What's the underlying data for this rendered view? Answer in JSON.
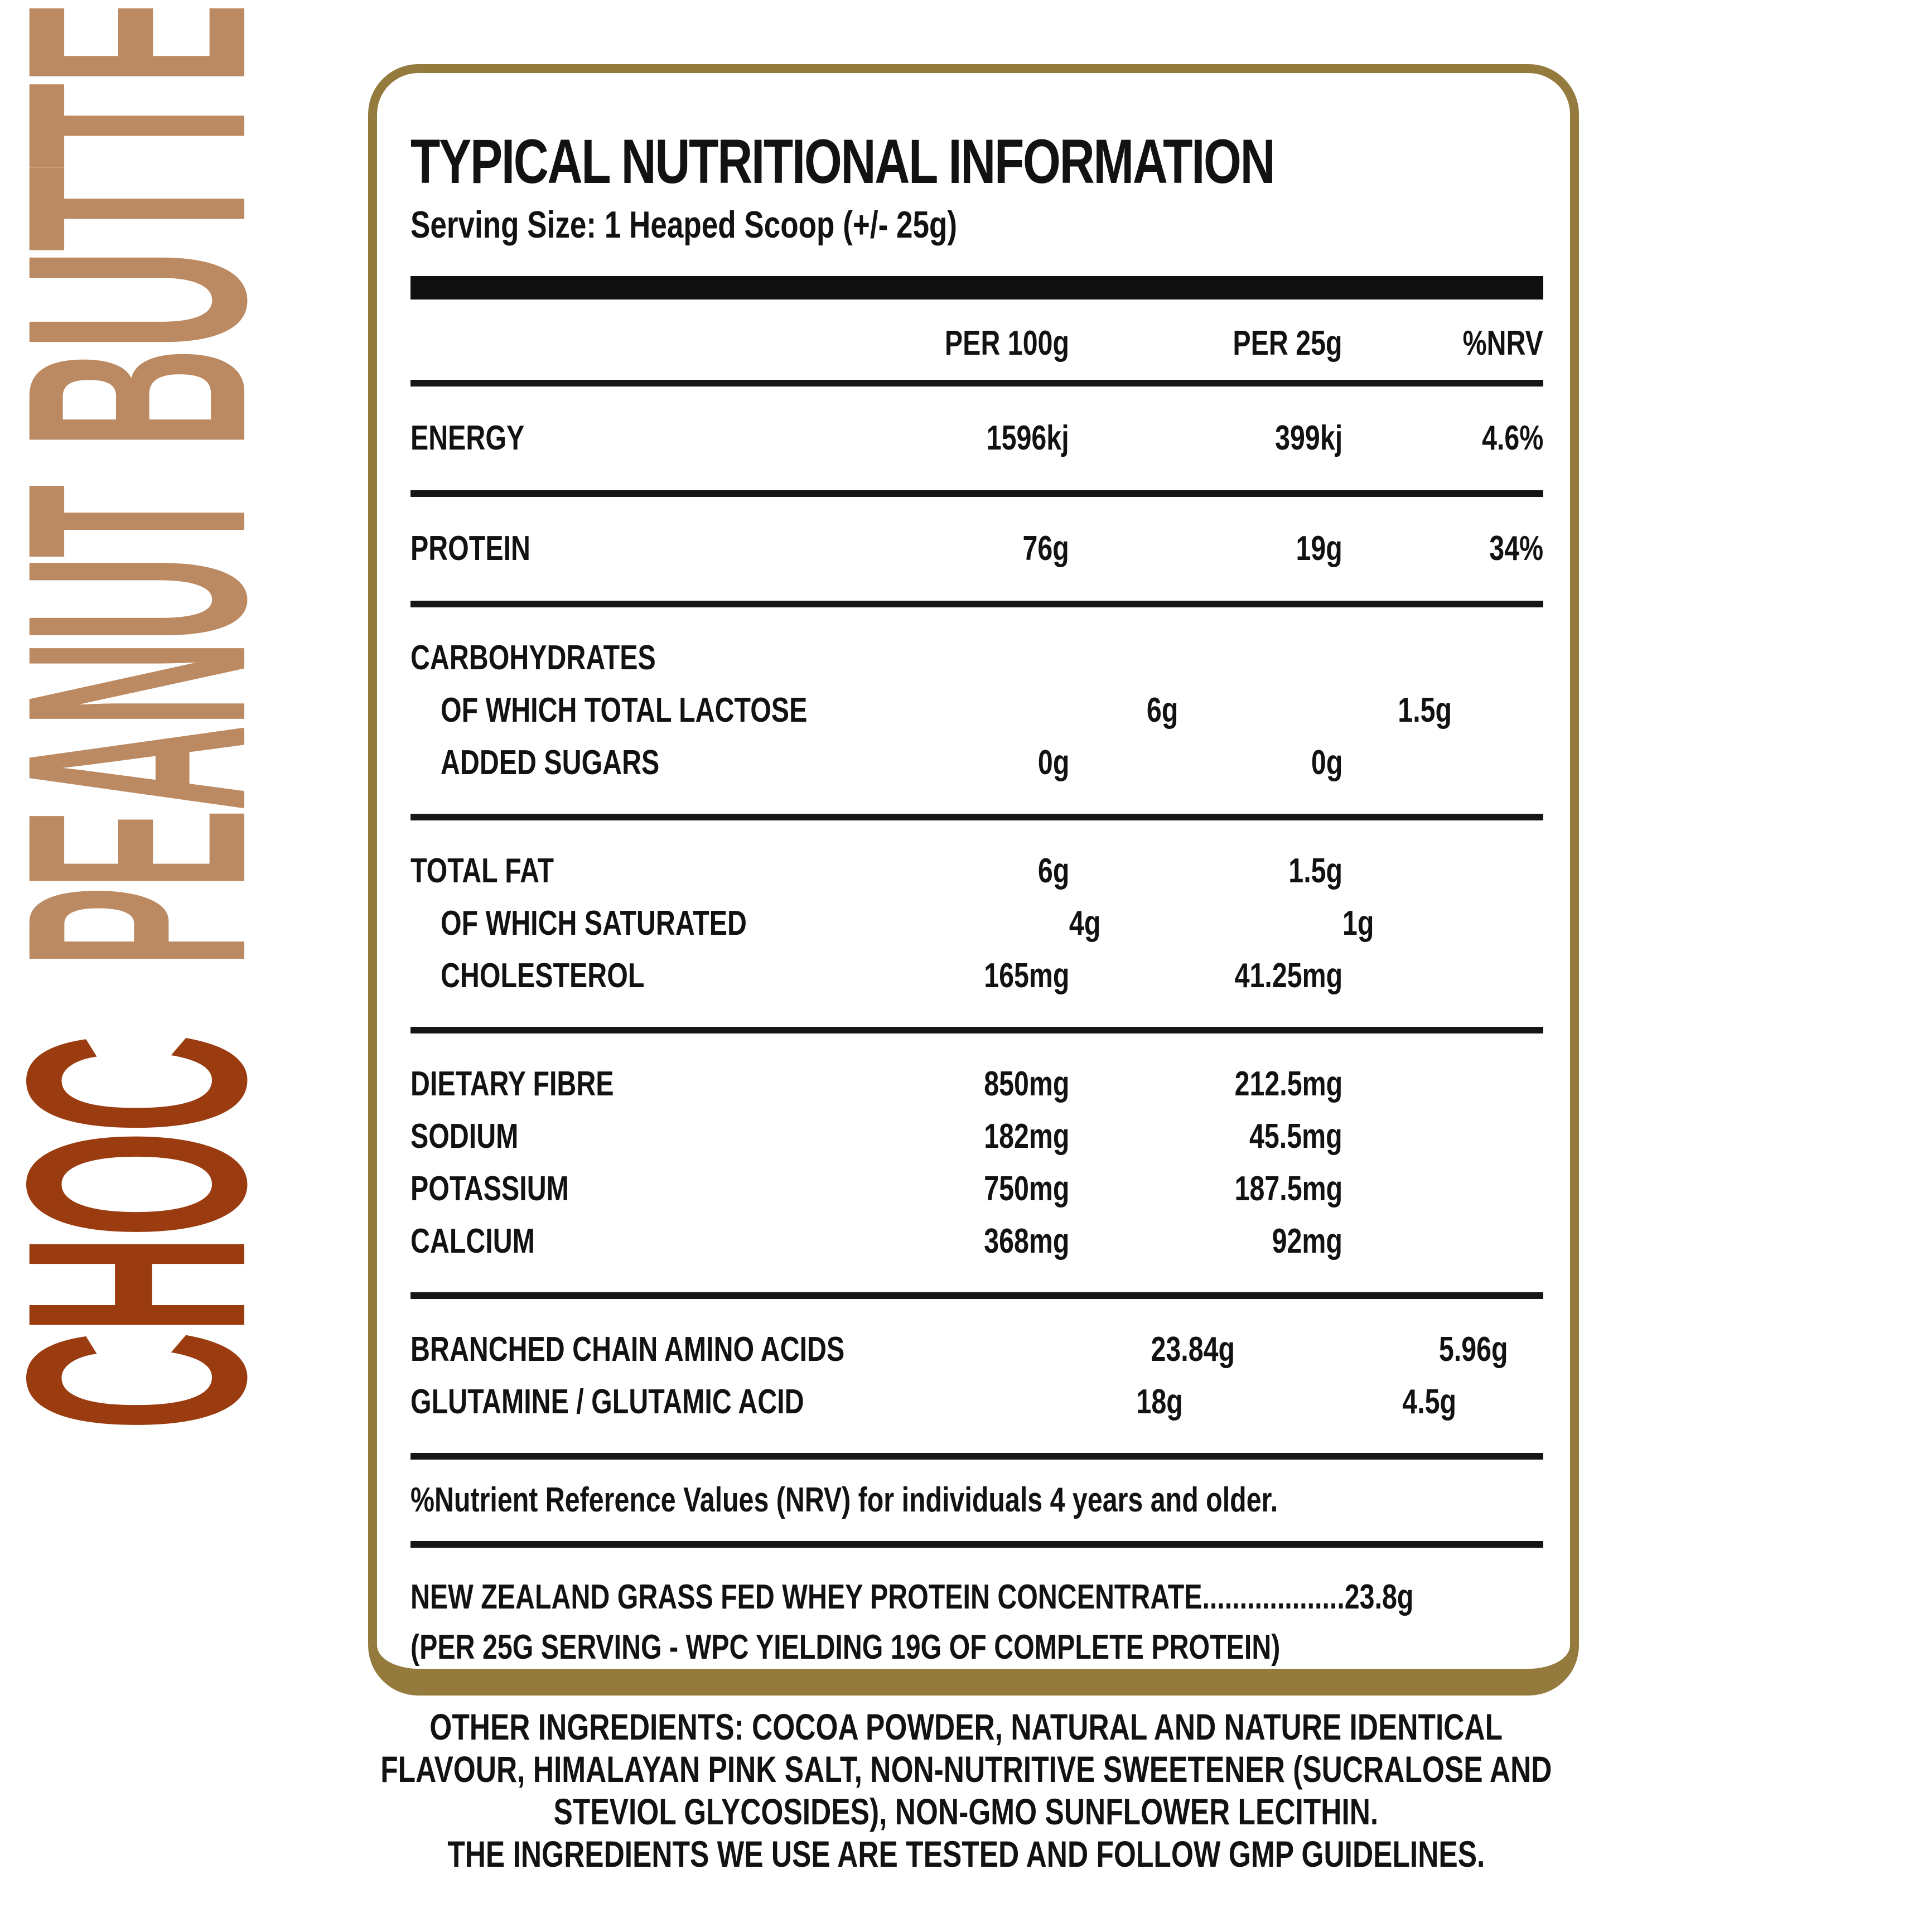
{
  "colors": {
    "tan": "#bc8a62",
    "rust": "#9a3c10",
    "gold_border": "#957a3d",
    "ink": "#121212"
  },
  "side_label": {
    "words": [
      {
        "text": "BUTTER",
        "color": "#bc8a62"
      },
      {
        "text": "PEANUT",
        "color": "#bc8a62"
      },
      {
        "text": "CHOC",
        "color": "#9a3c10"
      }
    ]
  },
  "panel": {
    "title": "TYPICAL NUTRITIONAL INFORMATION",
    "serving_size": "Serving Size: 1 Heaped Scoop (+/- 25g)",
    "columns": [
      "PER 100g",
      "PER 25g",
      "%NRV"
    ],
    "sections": [
      {
        "rows": [
          {
            "label": "ENERGY",
            "per100": "1596kj",
            "per25": "399kj",
            "nrv": "4.6%"
          }
        ]
      },
      {
        "rows": [
          {
            "label": "PROTEIN",
            "per100": "76g",
            "per25": "19g",
            "nrv": "34%"
          }
        ]
      },
      {
        "rows": [
          {
            "label": "CARBOHYDRATES",
            "per100": "",
            "per25": "",
            "nrv": ""
          },
          {
            "label": "OF WHICH TOTAL LACTOSE",
            "indent": true,
            "per100": "6g",
            "per25": "1.5g",
            "nrv": ""
          },
          {
            "label": "ADDED SUGARS",
            "indent": true,
            "per100": "0g",
            "per25": "0g",
            "nrv": ""
          }
        ]
      },
      {
        "rows": [
          {
            "label": "TOTAL FAT",
            "per100": "6g",
            "per25": "1.5g",
            "nrv": ""
          },
          {
            "label": "OF WHICH SATURATED",
            "indent": true,
            "per100": "4g",
            "per25": "1g",
            "nrv": ""
          },
          {
            "label": "CHOLESTEROL",
            "indent": true,
            "per100": "165mg",
            "per25": "41.25mg",
            "nrv": ""
          }
        ]
      },
      {
        "rows": [
          {
            "label": "DIETARY FIBRE",
            "per100": "850mg",
            "per25": "212.5mg",
            "nrv": ""
          },
          {
            "label": "SODIUM",
            "per100": "182mg",
            "per25": "45.5mg",
            "nrv": ""
          },
          {
            "label": "POTASSIUM",
            "per100": "750mg",
            "per25": "187.5mg",
            "nrv": ""
          },
          {
            "label": "CALCIUM",
            "per100": "368mg",
            "per25": "92mg",
            "nrv": ""
          }
        ]
      },
      {
        "rows": [
          {
            "label": "BRANCHED CHAIN AMINO ACIDS",
            "per100": "23.84g",
            "per25": "5.96g",
            "nrv": ""
          },
          {
            "label": "GLUTAMINE / GLUTAMIC ACID",
            "per100": "18g",
            "per25": "4.5g",
            "nrv": ""
          }
        ]
      }
    ],
    "nrv_note": "%Nutrient Reference Values (NRV) for individuals 4 years and older.",
    "wpc_line": "NEW ZEALAND GRASS FED WHEY PROTEIN CONCENTRATE...................23.8g",
    "wpc_note": "(PER 25G SERVING - WPC YIELDING 19G OF COMPLETE PROTEIN)"
  },
  "footer": {
    "lines": [
      "OTHER INGREDIENTS: COCOA POWDER, NATURAL AND NATURE IDENTICAL",
      "FLAVOUR, HIMALAYAN PINK SALT, NON-NUTRITIVE SWEETENER (SUCRALOSE AND",
      "STEVIOL GLYCOSIDES), NON-GMO SUNFLOWER LECITHIN.",
      "THE INGREDIENTS WE USE ARE TESTED AND FOLLOW GMP GUIDELINES."
    ]
  }
}
